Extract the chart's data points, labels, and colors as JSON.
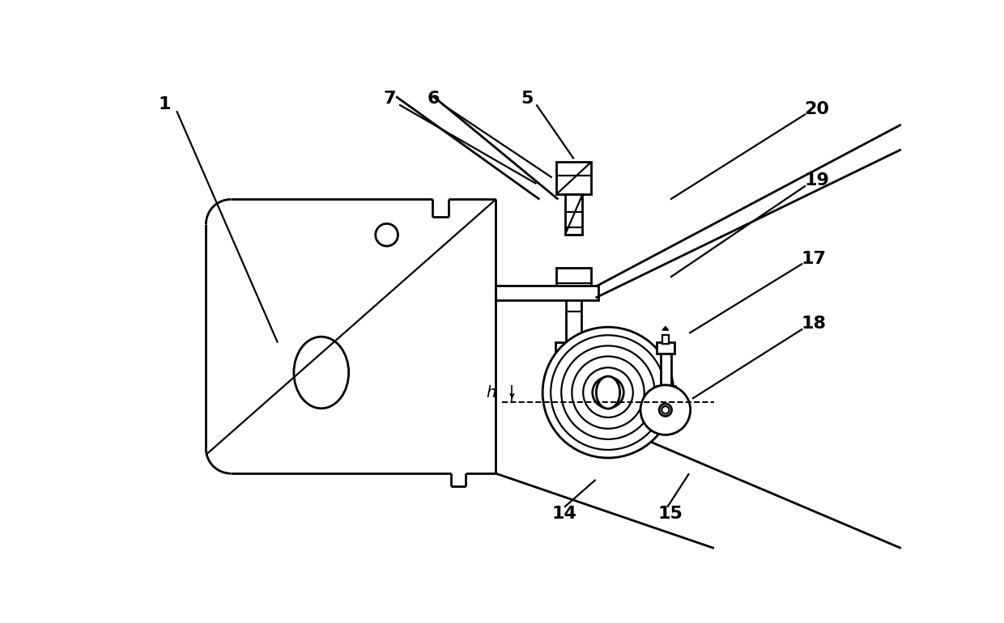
{
  "bg_color": "#ffffff",
  "line_color": "#000000",
  "lw": 1.6,
  "lw2": 2.0,
  "fig_width": 12.4,
  "fig_height": 7.7
}
